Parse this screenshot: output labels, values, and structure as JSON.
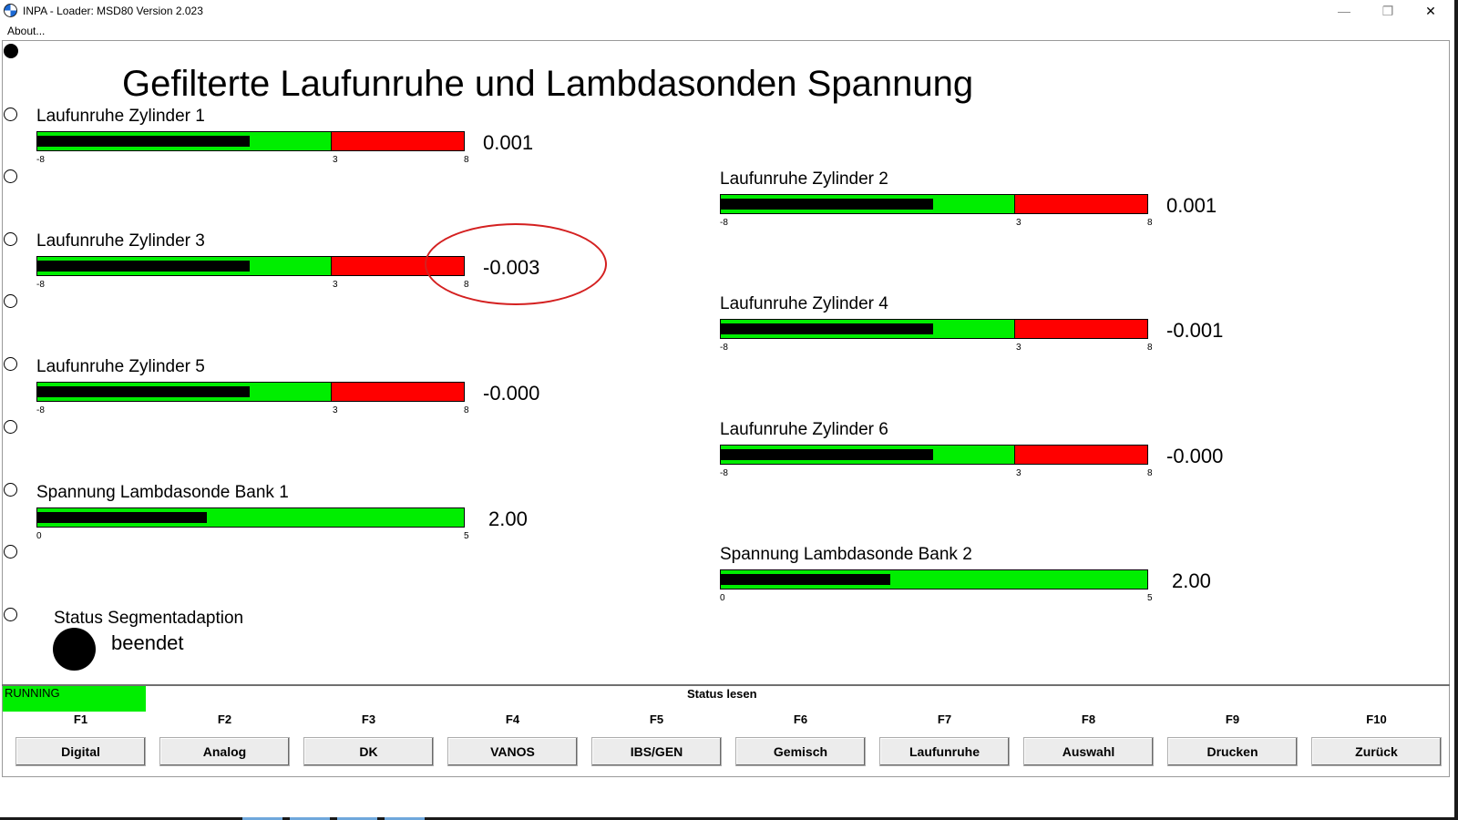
{
  "window": {
    "title": "INPA - Loader:  MSD80 Version 2.023",
    "controls": {
      "minimize": "—",
      "maximize": "❐",
      "close": "✕"
    }
  },
  "menu": {
    "about": "About..."
  },
  "page": {
    "title": "Gefilterte Laufunruhe und Lambdasonden Spannung"
  },
  "colors": {
    "fill": "#000000",
    "ok": "#00ee00",
    "bad": "#ff0000",
    "annotation": "#d42020"
  },
  "gauges": [
    {
      "label": "Laufunruhe Zylinder 1",
      "value": "0.001",
      "min": -8,
      "max": 8,
      "threshold": 3,
      "tick_min": "-8",
      "tick_mid": "3",
      "tick_max": "8"
    },
    {
      "label": "Laufunruhe Zylinder 2",
      "value": "0.001",
      "min": -8,
      "max": 8,
      "threshold": 3,
      "tick_min": "-8",
      "tick_mid": "3",
      "tick_max": "8"
    },
    {
      "label": "Laufunruhe Zylinder 3",
      "value": "-0.003",
      "min": -8,
      "max": 8,
      "threshold": 3,
      "tick_min": "-8",
      "tick_mid": "3",
      "tick_max": "8"
    },
    {
      "label": "Laufunruhe Zylinder 4",
      "value": "-0.001",
      "min": -8,
      "max": 8,
      "threshold": 3,
      "tick_min": "-8",
      "tick_mid": "3",
      "tick_max": "8"
    },
    {
      "label": "Laufunruhe Zylinder 5",
      "value": "-0.000",
      "min": -8,
      "max": 8,
      "threshold": 3,
      "tick_min": "-8",
      "tick_mid": "3",
      "tick_max": "8"
    },
    {
      "label": "Laufunruhe Zylinder 6",
      "value": "-0.000",
      "min": -8,
      "max": 8,
      "threshold": 3,
      "tick_min": "-8",
      "tick_mid": "3",
      "tick_max": "8"
    },
    {
      "label": "Spannung Lambdasonde Bank 1",
      "value": "2.00",
      "min": 0,
      "max": 5,
      "tick_min": "0",
      "tick_max": "5"
    },
    {
      "label": "Spannung Lambdasonde Bank 2",
      "value": "2.00",
      "min": 0,
      "max": 5,
      "tick_min": "0",
      "tick_max": "5"
    }
  ],
  "segment_status": {
    "label": "Status Segmentadaption",
    "value": "beendet"
  },
  "statusbar": {
    "running": "RUNNING",
    "status_text": "Status lesen"
  },
  "function_keys": [
    {
      "key": "F1",
      "label": "Digital"
    },
    {
      "key": "F2",
      "label": "Analog"
    },
    {
      "key": "F3",
      "label": "DK"
    },
    {
      "key": "F4",
      "label": "VANOS"
    },
    {
      "key": "F5",
      "label": "IBS/GEN"
    },
    {
      "key": "F6",
      "label": "Gemisch"
    },
    {
      "key": "F7",
      "label": "Laufunruhe"
    },
    {
      "key": "F8",
      "label": "Auswahl"
    },
    {
      "key": "F9",
      "label": "Drucken"
    },
    {
      "key": "F10",
      "label": "Zurück"
    }
  ]
}
